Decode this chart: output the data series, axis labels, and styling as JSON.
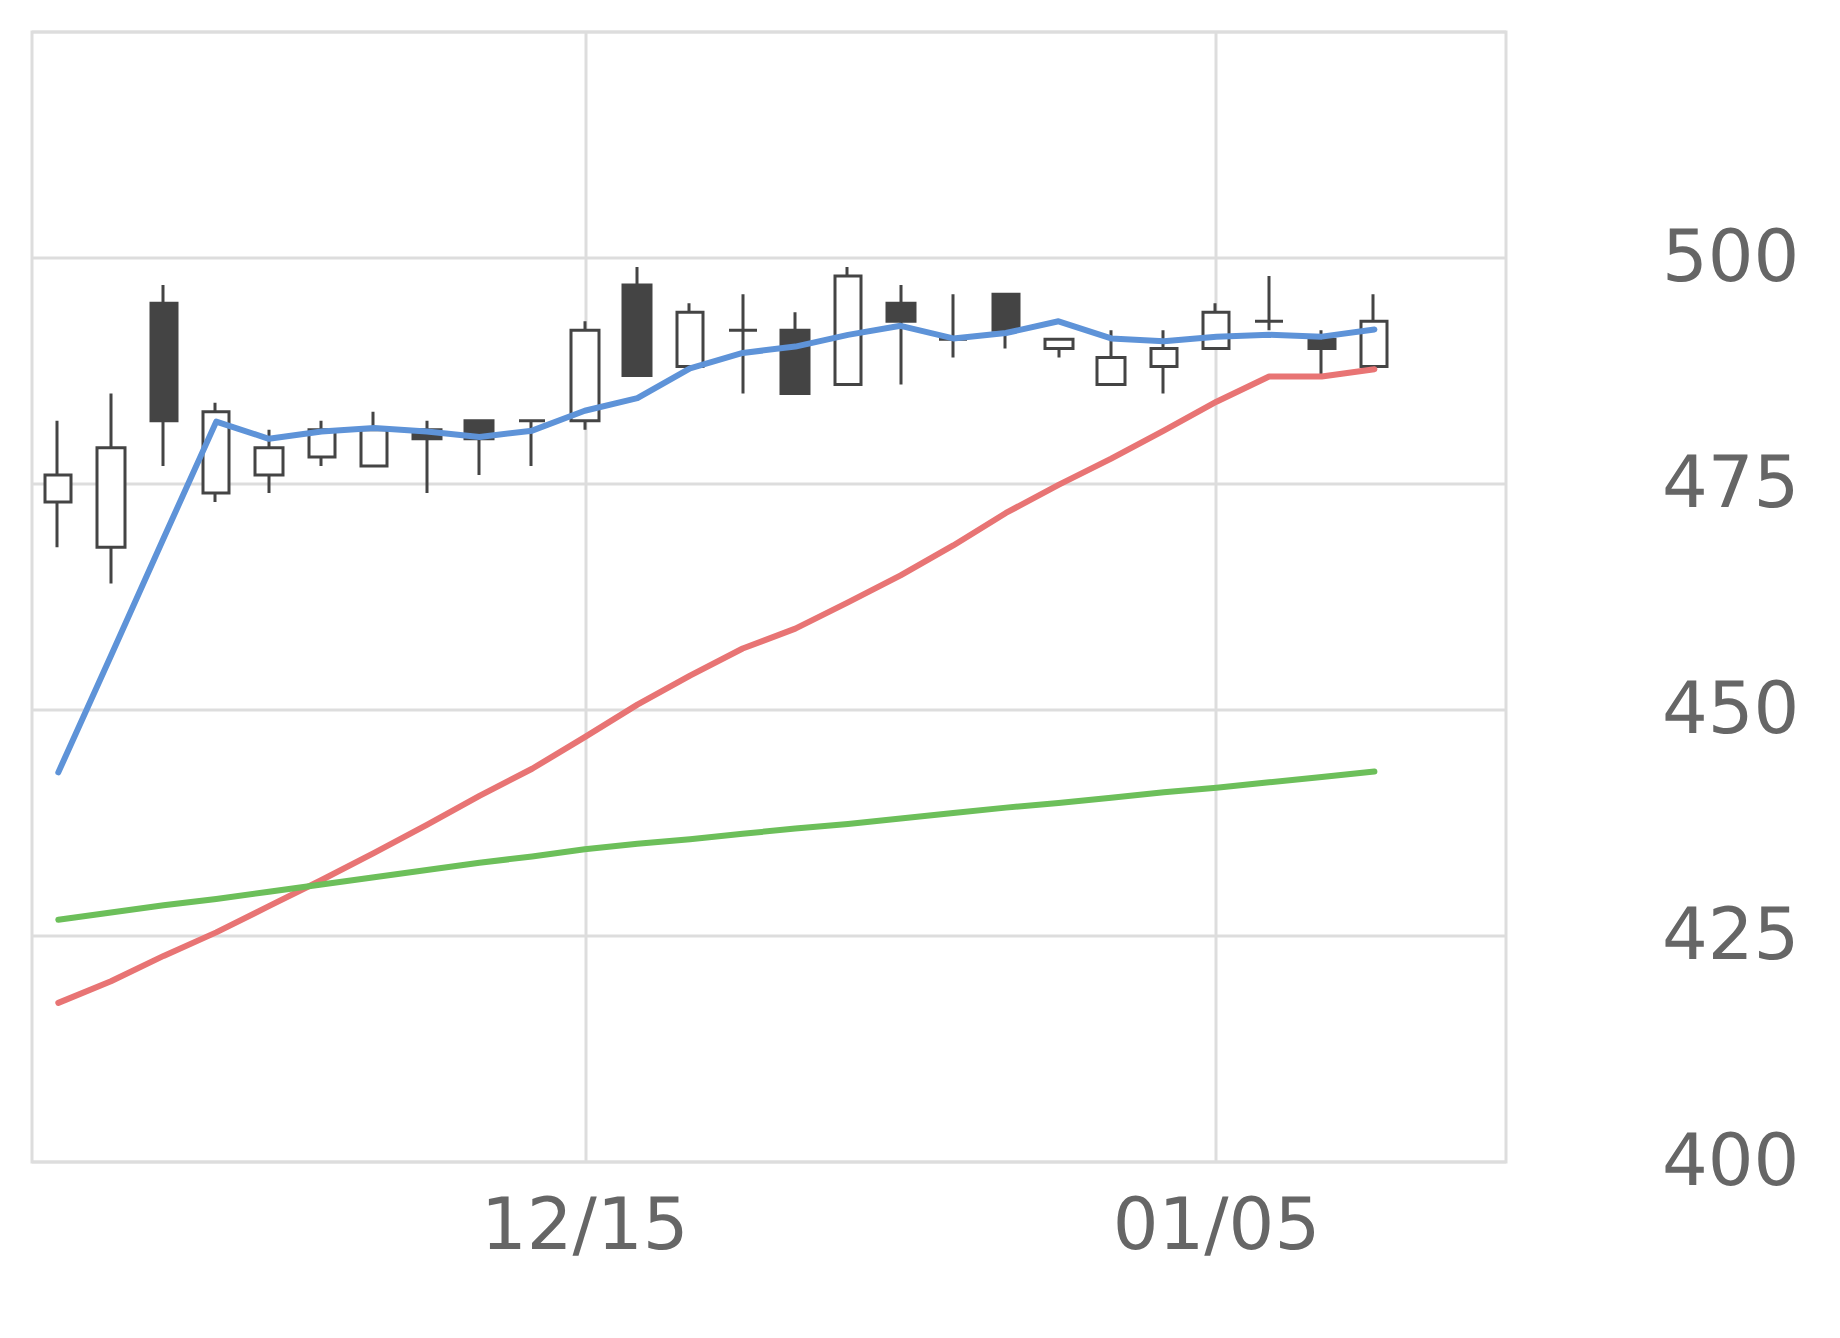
{
  "chart_data": {
    "type": "candlestick",
    "categories": [
      null,
      null,
      null,
      null,
      null,
      null,
      null,
      null,
      null,
      null,
      "12/15",
      null,
      null,
      null,
      null,
      null,
      null,
      null,
      null,
      null,
      null,
      null,
      "01/05",
      null,
      null,
      null,
      null,
      null
    ],
    "ohlc": [
      [
        473,
        482,
        468,
        476
      ],
      [
        468,
        485,
        464,
        479
      ],
      [
        495,
        497,
        477,
        482
      ],
      [
        474,
        484,
        473,
        483
      ],
      [
        476,
        481,
        474,
        479
      ],
      [
        478,
        482,
        477,
        481
      ],
      [
        477,
        483,
        477,
        481
      ],
      [
        481,
        482,
        474,
        480
      ],
      [
        482,
        482,
        476,
        480
      ],
      [
        482,
        482,
        477,
        482
      ],
      [
        482,
        493,
        481,
        492
      ],
      [
        497,
        499,
        487,
        487
      ],
      [
        488,
        495,
        488,
        494
      ],
      [
        492,
        496,
        485,
        492
      ],
      [
        492,
        494,
        485,
        485
      ],
      [
        486,
        499,
        486,
        498
      ],
      [
        495,
        497,
        486,
        493
      ],
      [
        491,
        496,
        489,
        491
      ],
      [
        496,
        496,
        490,
        492
      ],
      [
        490,
        491,
        489,
        491
      ],
      [
        486,
        492,
        486,
        489
      ],
      [
        488,
        492,
        485,
        490
      ],
      [
        490,
        495,
        490,
        494
      ],
      [
        493,
        498,
        492,
        493
      ],
      [
        491,
        492,
        487,
        490
      ],
      [
        488,
        496,
        488,
        493
      ],
      null,
      null
    ],
    "series": [
      {
        "type": "line",
        "color": "#5e93d8",
        "values": [
          443.1,
          456,
          469,
          481.9,
          480,
          480.8,
          481.2,
          480.8,
          480.2,
          480.9,
          483.1,
          484.5,
          487.8,
          489.5,
          490.2,
          491.5,
          492.5,
          491.1,
          491.7,
          493,
          491.1,
          490.8,
          491.3,
          491.5,
          491.3,
          492.1,
          null,
          null
        ]
      },
      {
        "type": "line",
        "color": "#e87474",
        "values": [
          417.6,
          420,
          422.8,
          425.4,
          428.3,
          431.2,
          434.2,
          437.3,
          440.5,
          443.5,
          447,
          450.6,
          453.8,
          456.8,
          459,
          461.9,
          464.9,
          468.2,
          471.8,
          474.9,
          477.8,
          480.9,
          484.1,
          486.9,
          486.9,
          487.7,
          null,
          null
        ]
      },
      {
        "type": "line",
        "color": "#6cbf5a",
        "values": [
          426.8,
          427.6,
          428.4,
          429.1,
          429.9,
          430.7,
          431.5,
          432.3,
          433.1,
          433.8,
          434.6,
          435.2,
          435.7,
          436.3,
          436.9,
          437.4,
          438,
          438.6,
          439.2,
          439.7,
          440.3,
          440.9,
          441.4,
          442,
          442.6,
          443.2,
          null,
          null
        ]
      }
    ],
    "ylim": [
      400,
      525
    ],
    "yticks": [
      400,
      425,
      450,
      475,
      500
    ],
    "grid": true,
    "marker": "none",
    "line_style": "solid"
  }
}
